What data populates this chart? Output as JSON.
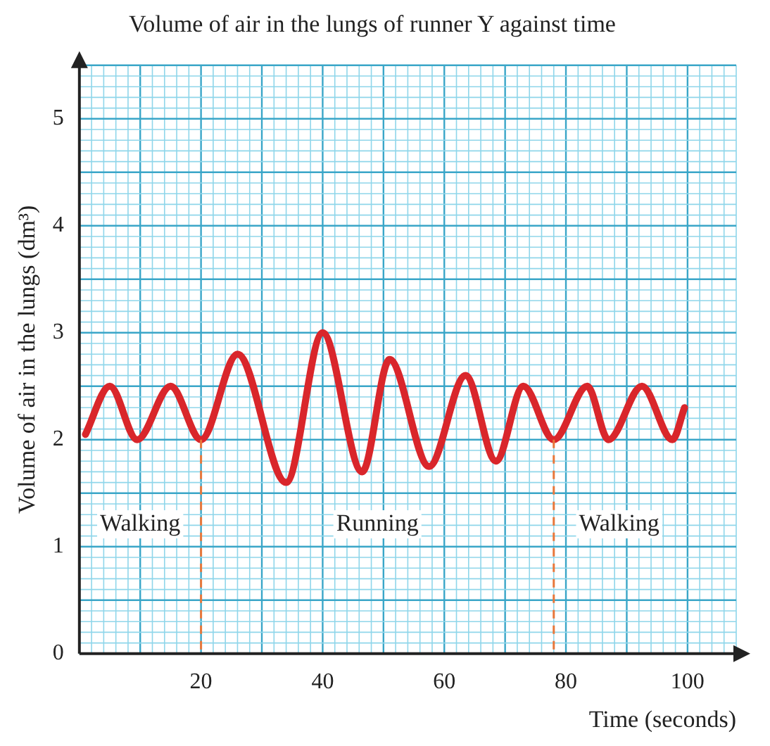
{
  "chart_data": {
    "type": "line",
    "title": "Volume of air in the lungs of runner Y against time",
    "xlabel": "Time (seconds)",
    "ylabel": "Volume of air in the lungs (dm³)",
    "series": [
      {
        "color": "#d9262b",
        "x": [
          1,
          5,
          9.5,
          15,
          20,
          26,
          34,
          40,
          46.5,
          51,
          57.5,
          63.5,
          68.5,
          73,
          78,
          83.5,
          87,
          92.5,
          97.5,
          99.5
        ],
        "values": [
          2.05,
          2.5,
          2.0,
          2.5,
          2.0,
          2.8,
          1.6,
          3.0,
          1.7,
          2.75,
          1.75,
          2.6,
          1.8,
          2.5,
          2.0,
          2.5,
          2.0,
          2.5,
          2.0,
          2.3
        ]
      }
    ],
    "xlim": [
      0,
      108
    ],
    "xticks": [
      {
        "value": 0,
        "label": null
      },
      {
        "value": 2,
        "label": null
      },
      {
        "value": 4,
        "label": null
      },
      {
        "value": 6,
        "label": null
      },
      {
        "value": 8,
        "label": null
      },
      {
        "value": 10,
        "label": null
      },
      {
        "value": 12,
        "label": null
      },
      {
        "value": 14,
        "label": null
      },
      {
        "value": 16,
        "label": null
      },
      {
        "value": 18,
        "label": null
      },
      20,
      {
        "value": 22,
        "label": null
      },
      {
        "value": 24,
        "label": null
      },
      {
        "value": 26,
        "label": null
      },
      {
        "value": 28,
        "label": null
      },
      {
        "value": 30,
        "label": null
      },
      {
        "value": 32,
        "label": null
      },
      {
        "value": 34,
        "label": null
      },
      {
        "value": 36,
        "label": null
      },
      {
        "value": 38,
        "label": null
      },
      40,
      {
        "value": 42,
        "label": null
      },
      {
        "value": 44,
        "label": null
      },
      {
        "value": 46,
        "label": null
      },
      {
        "value": 48,
        "label": null
      },
      {
        "value": 50,
        "label": null
      },
      {
        "value": 52,
        "label": null
      },
      {
        "value": 54,
        "label": null
      },
      {
        "value": 56,
        "label": null
      },
      {
        "value": 58,
        "label": null
      },
      60,
      {
        "value": 62,
        "label": null
      },
      {
        "value": 64,
        "label": null
      },
      {
        "value": 66,
        "label": null
      },
      {
        "value": 68,
        "label": null
      },
      {
        "value": 70,
        "label": null
      },
      {
        "value": 72,
        "label": null
      },
      {
        "value": 74,
        "label": null
      },
      {
        "value": 76,
        "label": null
      },
      {
        "value": 78,
        "label": null
      },
      80,
      {
        "value": 82,
        "label": null
      },
      {
        "value": 84,
        "label": null
      },
      {
        "value": 86,
        "label": null
      },
      {
        "value": 88,
        "label": null
      },
      {
        "value": 90,
        "label": null
      },
      {
        "value": 92,
        "label": null
      },
      {
        "value": 94,
        "label": null
      },
      {
        "value": 96,
        "label": null
      },
      {
        "value": 98,
        "label": null
      },
      100,
      {
        "value": 102,
        "label": null
      },
      {
        "value": 104,
        "label": null
      },
      {
        "value": 106,
        "label": null
      },
      {
        "value": 108,
        "label": null
      }
    ],
    "ylim": [
      0,
      5.5
    ],
    "yticks": [
      0,
      {
        "value": 0.1,
        "label": null
      },
      {
        "value": 0.2,
        "label": null
      },
      {
        "value": 0.3,
        "label": null
      },
      {
        "value": 0.4,
        "label": null
      },
      {
        "value": 0.5,
        "label": null
      },
      {
        "value": 0.6,
        "label": null
      },
      {
        "value": 0.7,
        "label": null
      },
      {
        "value": 0.8,
        "label": null
      },
      {
        "value": 0.9,
        "label": null
      },
      1,
      {
        "value": 1.1,
        "label": null
      },
      {
        "value": 1.2,
        "label": null
      },
      {
        "value": 1.3,
        "label": null
      },
      {
        "value": 1.4,
        "label": null
      },
      {
        "value": 1.5,
        "label": null
      },
      {
        "value": 1.6,
        "label": null
      },
      {
        "value": 1.7,
        "label": null
      },
      {
        "value": 1.8,
        "label": null
      },
      {
        "value": 1.9,
        "label": null
      },
      2,
      {
        "value": 2.1,
        "label": null
      },
      {
        "value": 2.2,
        "label": null
      },
      {
        "value": 2.3,
        "label": null
      },
      {
        "value": 2.4,
        "label": null
      },
      {
        "value": 2.5,
        "label": null
      },
      {
        "value": 2.6,
        "label": null
      },
      {
        "value": 2.7,
        "label": null
      },
      {
        "value": 2.8,
        "label": null
      },
      {
        "value": 2.9,
        "label": null
      },
      3,
      {
        "value": 3.1,
        "label": null
      },
      {
        "value": 3.2,
        "label": null
      },
      {
        "value": 3.3,
        "label": null
      },
      {
        "value": 3.4,
        "label": null
      },
      {
        "value": 3.5,
        "label": null
      },
      {
        "value": 3.6,
        "label": null
      },
      {
        "value": 3.7,
        "label": null
      },
      {
        "value": 3.8,
        "label": null
      },
      {
        "value": 3.9,
        "label": null
      },
      4,
      {
        "value": 4.1,
        "label": null
      },
      {
        "value": 4.2,
        "label": null
      },
      {
        "value": 4.3,
        "label": null
      },
      {
        "value": 4.4,
        "label": null
      },
      {
        "value": 4.5,
        "label": null
      },
      {
        "value": 4.6,
        "label": null
      },
      {
        "value": 4.7,
        "label": null
      },
      {
        "value": 4.8,
        "label": null
      },
      {
        "value": 4.9,
        "label": null
      },
      5,
      {
        "value": 5.1,
        "label": null
      },
      {
        "value": 5.2,
        "label": null
      },
      {
        "value": 5.3,
        "label": null
      },
      {
        "value": 5.4,
        "label": null
      },
      {
        "value": 5.5,
        "label": null
      }
    ],
    "grid": true,
    "legend": false,
    "marker": "none",
    "line_style": "solid",
    "ref_lines": [
      {
        "axis": "x",
        "value": 20,
        "color": "#e8773a",
        "line_style": "dashed"
      },
      {
        "axis": "x",
        "value": 78,
        "color": "#e8773a",
        "line_style": "dashed"
      }
    ],
    "annotations": [
      "Walking",
      "Running",
      "Walking"
    ]
  }
}
